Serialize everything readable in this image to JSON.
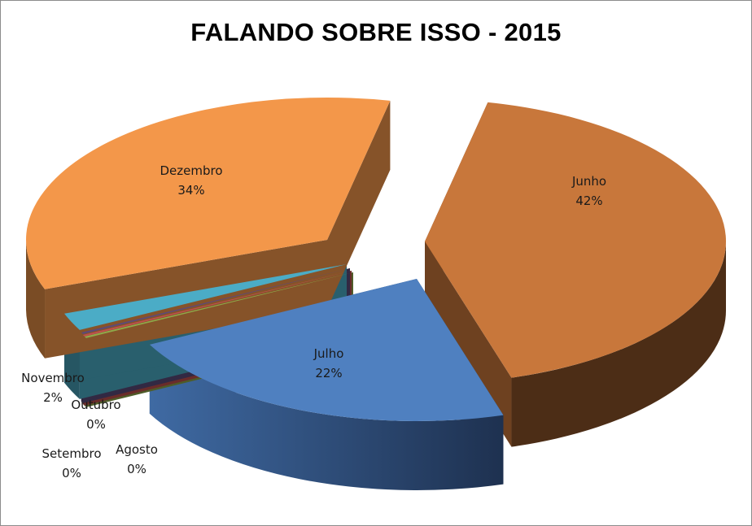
{
  "chart_data": {
    "type": "pie",
    "title": "FALANDO SOBRE ISSO - 2015",
    "slices": [
      {
        "name": "Junho",
        "value": 42,
        "label": "42%",
        "color": "#c8773b"
      },
      {
        "name": "Julho",
        "value": 22,
        "label": "22%",
        "color": "#4f80c0"
      },
      {
        "name": "Agosto",
        "value": 0,
        "label": "0%",
        "color": "#8fa84a"
      },
      {
        "name": "Setembro",
        "value": 0,
        "label": "0%",
        "color": "#c0504d"
      },
      {
        "name": "Outubro",
        "value": 0,
        "label": "0%",
        "color": "#5b4a7a"
      },
      {
        "name": "Novembro",
        "value": 2,
        "label": "2%",
        "color": "#4bacc6"
      },
      {
        "name": "Dezembro",
        "value": 34,
        "label": "34%",
        "color": "#f3974a"
      }
    ],
    "legend": "none",
    "style": "3d-exploded"
  }
}
